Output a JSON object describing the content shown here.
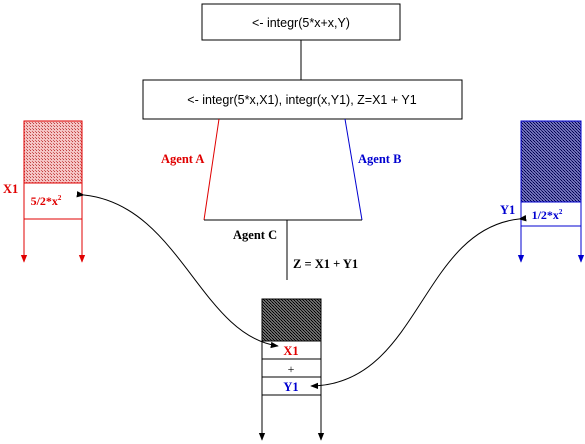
{
  "top_box": {
    "text": "<- integr(5*x+x,Y)"
  },
  "middle_box": {
    "text": "<- integr(5*x,X1), integr(x,Y1), Z=X1 + Y1"
  },
  "agents": {
    "a": {
      "label": "Agent A",
      "color": "#e00000"
    },
    "b": {
      "label": "Agent B",
      "color": "#0000d0"
    },
    "c": {
      "label": "Agent C",
      "color": "#000000"
    }
  },
  "equation": {
    "text": "Z = X1 + Y1"
  },
  "left_stack": {
    "var_label": "X1",
    "value": "5/2*x",
    "exponent": "2",
    "color": "#e00000"
  },
  "right_stack": {
    "var_label": "Y1",
    "value": "1/2*x",
    "exponent": "2",
    "color": "#0000d0"
  },
  "bottom_stack": {
    "rows": [
      {
        "text": "X1",
        "color": "#e00000"
      },
      {
        "text": "+",
        "color": "#000000"
      },
      {
        "text": "Y1",
        "color": "#0000d0"
      }
    ]
  }
}
